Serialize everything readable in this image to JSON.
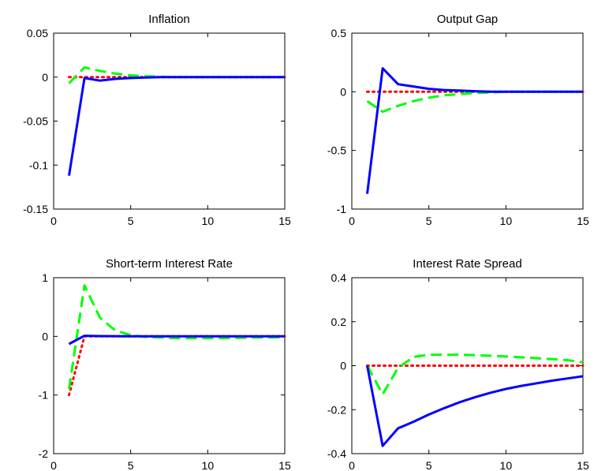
{
  "chart_data": [
    {
      "type": "line",
      "title": "Inflation",
      "xlabel": "",
      "ylabel": "",
      "xlim": [
        0,
        15
      ],
      "ylim": [
        -0.15,
        0.05
      ],
      "xticks": [
        0,
        5,
        10,
        15
      ],
      "yticks": [
        -0.15,
        -0.1,
        -0.05,
        0,
        0.05
      ],
      "ytick_labels": [
        "-0.15",
        "-0.1",
        "-0.05",
        "0",
        "0.05"
      ],
      "grid": false,
      "x": [
        1,
        2,
        3,
        4,
        5,
        6,
        7,
        8,
        9,
        10,
        11,
        12,
        13,
        14,
        15
      ],
      "series": [
        {
          "style": "solid",
          "color": "#0000ff",
          "values": [
            -0.112,
            -0.001,
            -0.004,
            -0.002,
            -0.001,
            -0.0005,
            0,
            0,
            0,
            0,
            0,
            0,
            0,
            0,
            0
          ]
        },
        {
          "style": "dashed",
          "color": "#00ff00",
          "values": [
            -0.007,
            0.011,
            0.007,
            0.004,
            0.002,
            0.001,
            0.0005,
            0,
            0,
            0,
            0,
            0,
            0,
            0,
            0
          ]
        },
        {
          "style": "dotted",
          "color": "#ff0000",
          "values": [
            0,
            0,
            0,
            0,
            0,
            0,
            0,
            0,
            0,
            0,
            0,
            0,
            0,
            0,
            0
          ]
        }
      ]
    },
    {
      "type": "line",
      "title": "Output Gap",
      "xlabel": "",
      "ylabel": "",
      "xlim": [
        0,
        15
      ],
      "ylim": [
        -1,
        0.5
      ],
      "xticks": [
        0,
        5,
        10,
        15
      ],
      "yticks": [
        -1,
        -0.5,
        0,
        0.5
      ],
      "ytick_labels": [
        "-1",
        "-0.5",
        "0",
        "0.5"
      ],
      "grid": false,
      "x": [
        1,
        2,
        3,
        4,
        5,
        6,
        7,
        8,
        9,
        10,
        11,
        12,
        13,
        14,
        15
      ],
      "series": [
        {
          "style": "solid",
          "color": "#0000ff",
          "values": [
            -0.87,
            0.2,
            0.065,
            0.045,
            0.025,
            0.015,
            0.01,
            0.005,
            0,
            0,
            0,
            0,
            0,
            0,
            0
          ]
        },
        {
          "style": "dashed",
          "color": "#00ff00",
          "values": [
            -0.08,
            -0.17,
            -0.12,
            -0.08,
            -0.05,
            -0.03,
            -0.02,
            -0.01,
            -0.005,
            0,
            0,
            0,
            0,
            0,
            0
          ]
        },
        {
          "style": "dotted",
          "color": "#ff0000",
          "values": [
            0,
            0,
            0,
            0,
            0,
            0,
            0,
            0,
            0,
            0,
            0,
            0,
            0,
            0,
            0
          ]
        }
      ]
    },
    {
      "type": "line",
      "title": "Short-term Interest Rate",
      "xlabel": "",
      "ylabel": "",
      "xlim": [
        0,
        15
      ],
      "ylim": [
        -2,
        1
      ],
      "xticks": [
        0,
        5,
        10,
        15
      ],
      "yticks": [
        -2,
        -1,
        0,
        1
      ],
      "ytick_labels": [
        "-2",
        "-1",
        "0",
        "1"
      ],
      "grid": false,
      "x": [
        1,
        2,
        3,
        4,
        5,
        6,
        7,
        8,
        9,
        10,
        11,
        12,
        13,
        14,
        15
      ],
      "series": [
        {
          "style": "solid",
          "color": "#0000ff",
          "values": [
            -0.13,
            0.01,
            0.005,
            0.003,
            0.002,
            0.001,
            0,
            0,
            0,
            0,
            0,
            0,
            0,
            0,
            0
          ]
        },
        {
          "style": "dashed",
          "color": "#00ff00",
          "values": [
            -0.9,
            0.87,
            0.32,
            0.1,
            0.02,
            -0.01,
            -0.02,
            -0.03,
            -0.03,
            -0.03,
            -0.03,
            -0.025,
            -0.02,
            -0.02,
            -0.015
          ]
        },
        {
          "style": "dotted",
          "color": "#ff0000",
          "values": [
            -1.0,
            0,
            0,
            0,
            0,
            0,
            0,
            0,
            0,
            0,
            0,
            0,
            0,
            0,
            0
          ]
        }
      ]
    },
    {
      "type": "line",
      "title": "Interest Rate Spread",
      "xlabel": "",
      "ylabel": "",
      "xlim": [
        0,
        15
      ],
      "ylim": [
        -0.4,
        0.4
      ],
      "xticks": [
        0,
        5,
        10,
        15
      ],
      "yticks": [
        -0.4,
        -0.2,
        0,
        0.2,
        0.4
      ],
      "ytick_labels": [
        "-0.4",
        "-0.2",
        "0",
        "0.2",
        "0.4"
      ],
      "grid": false,
      "x": [
        1,
        2,
        3,
        4,
        5,
        6,
        7,
        8,
        9,
        10,
        11,
        12,
        13,
        14,
        15
      ],
      "series": [
        {
          "style": "solid",
          "color": "#0000ff",
          "values": [
            0,
            -0.365,
            -0.285,
            -0.255,
            -0.222,
            -0.193,
            -0.166,
            -0.143,
            -0.123,
            -0.106,
            -0.092,
            -0.08,
            -0.068,
            -0.058,
            -0.048
          ]
        },
        {
          "style": "dashed",
          "color": "#00ff00",
          "values": [
            0,
            -0.13,
            -0.01,
            0.04,
            0.05,
            0.05,
            0.05,
            0.048,
            0.045,
            0.042,
            0.038,
            0.034,
            0.03,
            0.025,
            0.015
          ]
        },
        {
          "style": "dotted",
          "color": "#ff0000",
          "values": [
            0,
            0,
            0,
            0,
            0,
            0,
            0,
            0,
            0,
            0,
            0,
            0,
            0,
            0,
            0
          ]
        }
      ]
    }
  ]
}
